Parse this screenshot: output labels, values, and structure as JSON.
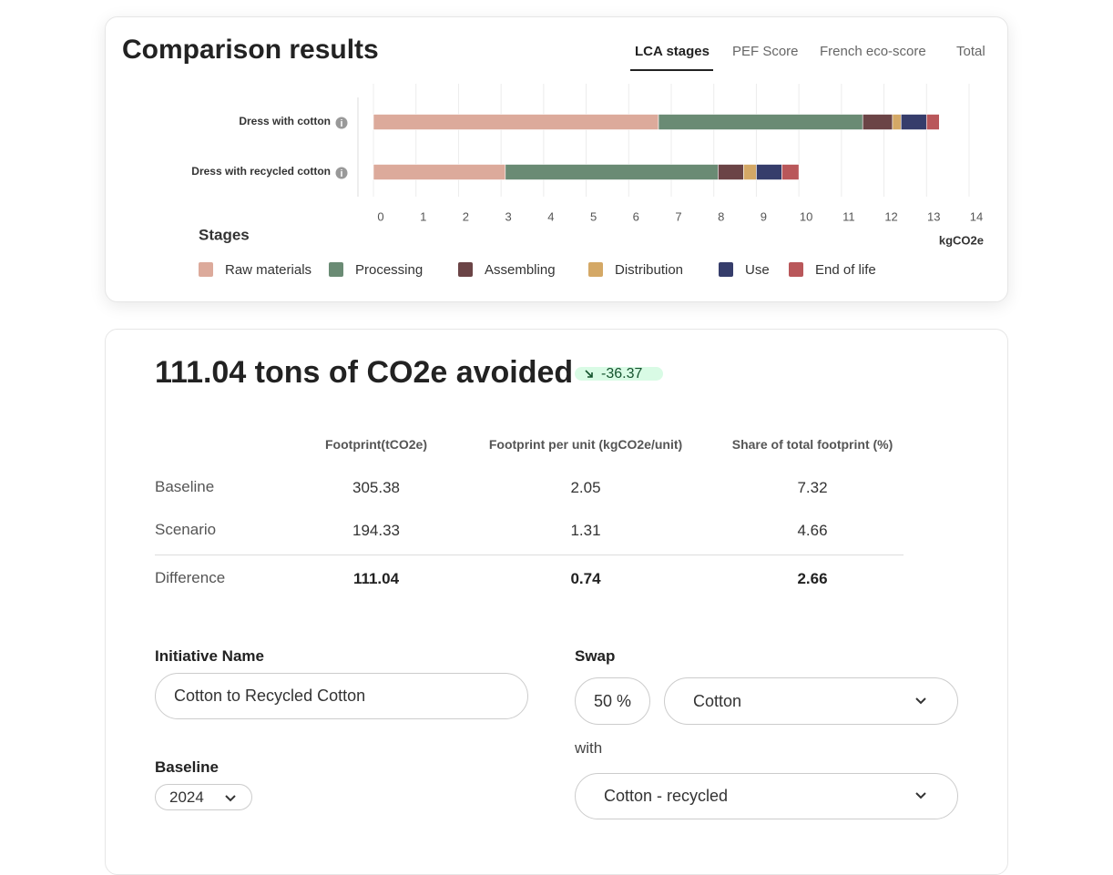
{
  "header": {
    "title": "Comparison results",
    "tabs": [
      "LCA stages",
      "PEF Score",
      "French eco-score",
      "Total"
    ]
  },
  "chart_data": {
    "type": "bar",
    "orientation": "horizontal",
    "stacked": true,
    "categories": [
      "Dress with cotton",
      "Dress with recycled cotton"
    ],
    "series": [
      {
        "name": "Raw materials",
        "color": "#dcaa9b",
        "values": [
          6.7,
          3.1
        ]
      },
      {
        "name": "Processing",
        "color": "#6a8b74",
        "values": [
          4.8,
          5.0
        ]
      },
      {
        "name": "Assembling",
        "color": "#6b4446",
        "values": [
          0.7,
          0.6
        ]
      },
      {
        "name": "Distribution",
        "color": "#d4a866",
        "values": [
          0.2,
          0.3
        ]
      },
      {
        "name": "Use",
        "color": "#363d6b",
        "values": [
          0.6,
          0.6
        ]
      },
      {
        "name": "End of life",
        "color": "#b9575a",
        "values": [
          0.3,
          0.4
        ]
      }
    ],
    "xlim": [
      0,
      14
    ],
    "xticks": [
      0,
      1,
      2,
      3,
      4,
      5,
      6,
      7,
      8,
      9,
      10,
      11,
      12,
      13,
      14
    ],
    "xlabel": "kgCO2e",
    "legend_title": "Stages",
    "grid": true
  },
  "summary": {
    "headline": "111.04 tons of CO2e avoided",
    "badge": "-36.37"
  },
  "table": {
    "columns": [
      "Footprint(tCO2e)",
      "Footprint per unit (kgCO2e/unit)",
      "Share of total footprint (%)"
    ],
    "rows": [
      [
        "Baseline",
        305.38,
        2.05,
        7.32
      ],
      [
        "Scenario",
        194.33,
        1.31,
        4.66
      ],
      [
        "Difference",
        111.04,
        0.74,
        2.66
      ]
    ]
  },
  "form": {
    "initiative_label": "Initiative Name",
    "initiative_value": "Cotton to Recycled Cotton",
    "swap_label": "Swap",
    "swap_percent": "50 %",
    "swap_from": "Cotton",
    "with_label": "with",
    "swap_to": "Cotton - recycled",
    "baseline_label": "Baseline",
    "baseline_year": "2024"
  }
}
